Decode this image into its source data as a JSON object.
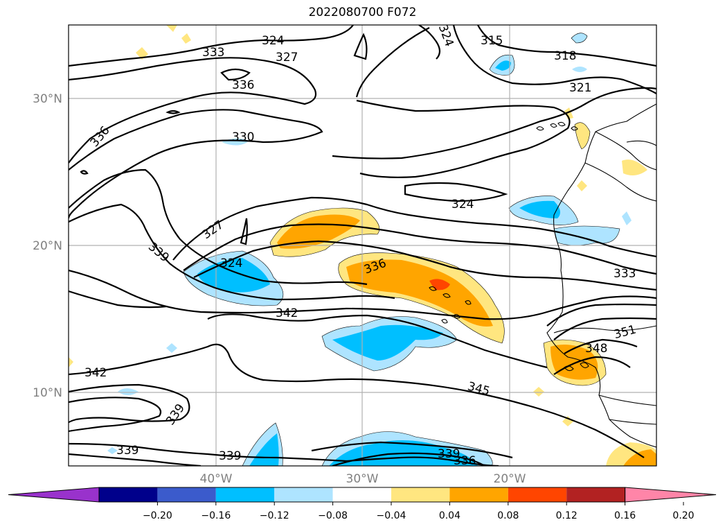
{
  "title": "2022080700 F072",
  "lat_labels": [
    "30°N",
    "20°N",
    "10°N"
  ],
  "lon_labels": [
    "40°W",
    "30°W",
    "20°W"
  ],
  "colorbar": {
    "ticks": [
      "−0.20",
      "−0.16",
      "−0.12",
      "−0.08",
      "−0.04",
      "0.04",
      "0.08",
      "0.12",
      "0.16",
      "0.20"
    ],
    "colors": [
      "#9932cc",
      "#00008b",
      "#3b5bcc",
      "#00bfff",
      "#aee4ff",
      "#ffffff",
      "#ffe680",
      "#ffa500",
      "#ff4500",
      "#b22222",
      "#ff85a8"
    ]
  },
  "contour_labels": [
    "324",
    "333",
    "327",
    "336",
    "315",
    "318",
    "321",
    "336",
    "330",
    "324",
    "327",
    "339",
    "324",
    "336",
    "333",
    "342",
    "351",
    "348",
    "342",
    "345",
    "339",
    "339",
    "339",
    "339",
    "336",
    "324"
  ]
}
